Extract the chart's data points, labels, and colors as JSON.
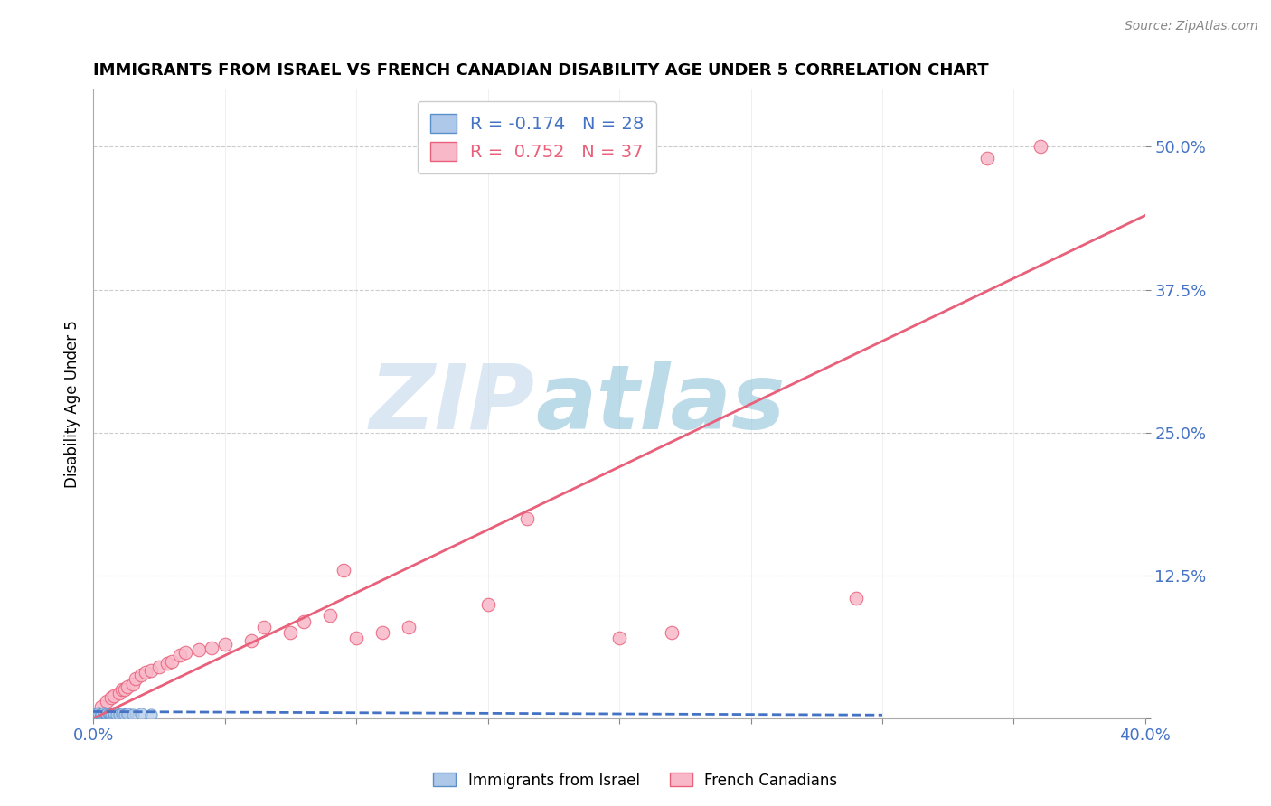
{
  "title": "IMMIGRANTS FROM ISRAEL VS FRENCH CANADIAN DISABILITY AGE UNDER 5 CORRELATION CHART",
  "source": "Source: ZipAtlas.com",
  "ylabel": "Disability Age Under 5",
  "xlim": [
    0.0,
    0.4
  ],
  "ylim": [
    0.0,
    0.55
  ],
  "xticks": [
    0.0,
    0.05,
    0.1,
    0.15,
    0.2,
    0.25,
    0.3,
    0.35,
    0.4
  ],
  "yticks": [
    0.0,
    0.125,
    0.25,
    0.375,
    0.5
  ],
  "yticklabels": [
    "",
    "12.5%",
    "25.0%",
    "37.5%",
    "50.0%"
  ],
  "israel_R": -0.174,
  "israel_N": 28,
  "french_R": 0.752,
  "french_N": 37,
  "israel_color": "#adc8e8",
  "french_color": "#f9b8c8",
  "israel_marker_edge": "#5b8fc9",
  "french_marker_edge": "#e8607a",
  "israel_line_color": "#4472c4",
  "french_line_color": "#e8607a",
  "legend_label_israel": "Immigrants from Israel",
  "legend_label_french": "French Canadians",
  "watermark_zip": "ZIP",
  "watermark_atlas": "atlas",
  "background_color": "#ffffff",
  "grid_color": "#cccccc",
  "tick_color": "#4472c4",
  "french_x": [
    0.003,
    0.005,
    0.007,
    0.008,
    0.01,
    0.011,
    0.012,
    0.013,
    0.015,
    0.016,
    0.018,
    0.02,
    0.022,
    0.025,
    0.028,
    0.03,
    0.033,
    0.035,
    0.04,
    0.045,
    0.05,
    0.06,
    0.065,
    0.075,
    0.08,
    0.09,
    0.095,
    0.1,
    0.11,
    0.12,
    0.15,
    0.165,
    0.2,
    0.22,
    0.29,
    0.34,
    0.36
  ],
  "french_y": [
    0.01,
    0.015,
    0.018,
    0.02,
    0.022,
    0.025,
    0.025,
    0.028,
    0.03,
    0.035,
    0.038,
    0.04,
    0.042,
    0.045,
    0.048,
    0.05,
    0.055,
    0.058,
    0.06,
    0.062,
    0.065,
    0.068,
    0.08,
    0.075,
    0.085,
    0.09,
    0.13,
    0.07,
    0.075,
    0.08,
    0.1,
    0.175,
    0.07,
    0.075,
    0.105,
    0.49,
    0.5
  ],
  "israel_x": [
    0.001,
    0.001,
    0.002,
    0.002,
    0.002,
    0.003,
    0.003,
    0.003,
    0.004,
    0.004,
    0.004,
    0.005,
    0.005,
    0.005,
    0.006,
    0.006,
    0.007,
    0.007,
    0.008,
    0.008,
    0.009,
    0.01,
    0.011,
    0.012,
    0.013,
    0.015,
    0.018,
    0.022
  ],
  "israel_y": [
    0.002,
    0.004,
    0.001,
    0.003,
    0.005,
    0.002,
    0.003,
    0.004,
    0.002,
    0.003,
    0.005,
    0.002,
    0.003,
    0.004,
    0.003,
    0.004,
    0.002,
    0.004,
    0.003,
    0.005,
    0.003,
    0.003,
    0.004,
    0.003,
    0.004,
    0.003,
    0.004,
    0.003
  ],
  "french_trend_x": [
    0.0,
    0.4
  ],
  "french_trend_y": [
    0.0,
    0.44
  ],
  "israel_trend_x": [
    0.0,
    0.3
  ],
  "israel_trend_y": [
    0.006,
    0.003
  ]
}
